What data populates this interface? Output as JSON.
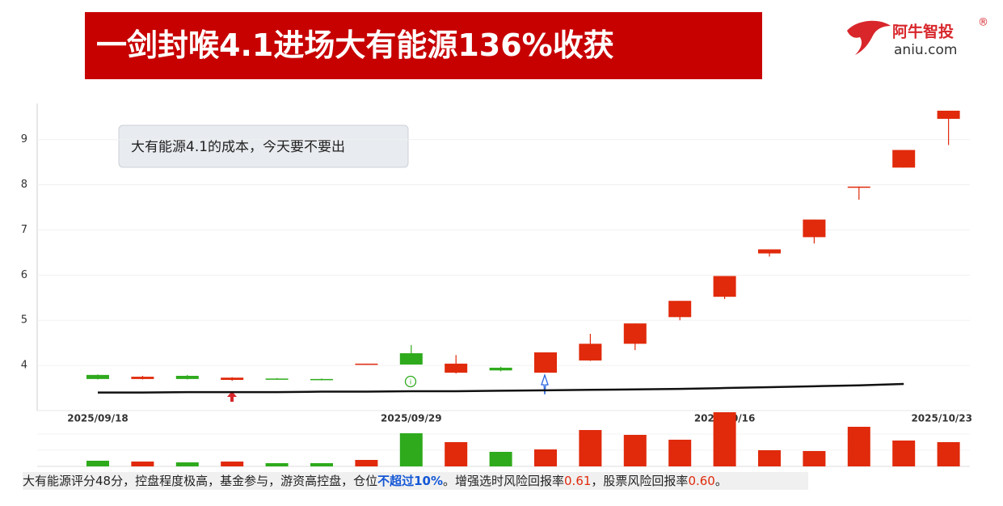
{
  "chart_data": {
    "type": "candlestick",
    "title": "一剑封喉4.1进场大有能源136%收获",
    "annotation": "大有能源4.1的成本，今天要不要出",
    "categories": [
      "2025/09/18",
      null,
      null,
      null,
      null,
      null,
      null,
      "2025/09/29",
      null,
      null,
      null,
      null,
      null,
      null,
      "2025/10/16",
      null,
      null,
      null,
      null,
      "2025/10/23"
    ],
    "open": [
      3.79,
      3.7,
      3.77,
      3.68,
      3.71,
      3.7,
      4.03,
      4.27,
      3.84,
      3.95,
      3.84,
      4.11,
      4.48,
      5.07,
      5.52,
      6.48,
      6.84,
      7.96,
      8.38,
      9.46
    ],
    "high": [
      3.8,
      3.77,
      3.79,
      3.74,
      3.72,
      3.71,
      4.04,
      4.45,
      4.23,
      3.97,
      4.29,
      4.7,
      4.93,
      5.43,
      5.98,
      6.57,
      7.23,
      7.96,
      8.77,
      9.64
    ],
    "low": [
      3.69,
      3.69,
      3.69,
      3.66,
      3.69,
      3.67,
      4.03,
      4.02,
      3.82,
      3.87,
      3.84,
      4.1,
      4.34,
      5.0,
      5.47,
      6.41,
      6.7,
      7.67,
      8.38,
      8.88
    ],
    "close": [
      3.7,
      3.75,
      3.7,
      3.73,
      3.7,
      3.68,
      4.04,
      4.02,
      4.04,
      3.89,
      4.29,
      4.48,
      4.93,
      5.43,
      5.98,
      6.57,
      7.23,
      7.96,
      8.77,
      9.64
    ],
    "up_color": "#e02a0b",
    "down_color": "#2eaa1c",
    "series": [
      {
        "color": "#111111",
        "values": [
          3.4,
          3.4,
          3.41,
          3.41,
          3.41,
          3.42,
          3.42,
          3.43,
          3.43,
          3.44,
          3.45,
          3.46,
          3.47,
          3.48,
          3.5,
          3.52,
          3.54,
          3.56,
          3.59,
          null
        ]
      }
    ],
    "volume": [
      7,
      6,
      5,
      6,
      4,
      4,
      8,
      41,
      30,
      18,
      21,
      45,
      39,
      33,
      67,
      20,
      19,
      49,
      32,
      30
    ],
    "volume_lim": [
      0,
      67
    ],
    "ylim": [
      3,
      9.8
    ],
    "yticks": [
      4,
      5,
      6,
      7,
      8,
      9
    ],
    "grid": true
  },
  "logo": {
    "name": "阿牛智投",
    "mark": "®",
    "site": "aniu.com"
  },
  "footer": {
    "segments": [
      "大有能源评分48分，控盘程度极高，基金参与，游资高控盘，仓位",
      "不超过10%",
      "。增强选时风险回报率",
      "0.61",
      "，股票风险回报率",
      "0.60",
      "。"
    ]
  }
}
